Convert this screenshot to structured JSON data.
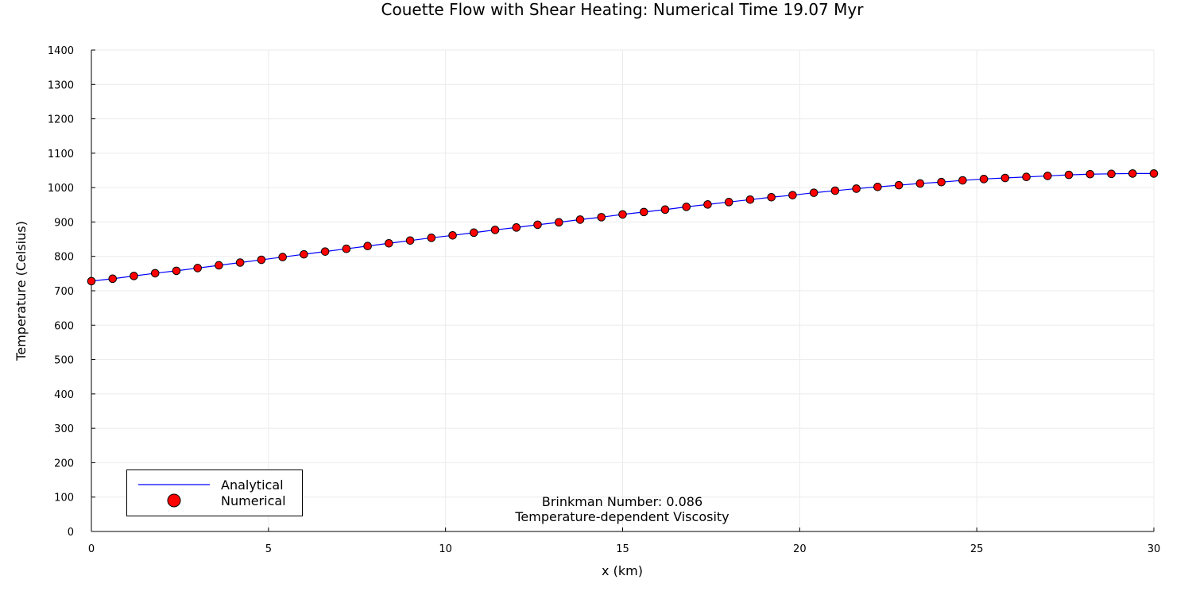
{
  "chart_data": {
    "type": "line+scatter",
    "title": "Couette Flow with Shear Heating: Numerical Time 19.07 Myr",
    "xlabel": "x (km)",
    "ylabel": "Temperature (Celsius)",
    "xlim": [
      0,
      30
    ],
    "ylim": [
      0,
      1400
    ],
    "xticks": [
      0,
      5,
      10,
      15,
      20,
      25,
      30
    ],
    "yticks": [
      0,
      100,
      200,
      300,
      400,
      500,
      600,
      700,
      800,
      900,
      1000,
      1100,
      1200,
      1300,
      1400
    ],
    "grid": true,
    "legend_position": "bottom-left",
    "annotations": [
      "Brinkman Number: 0.086",
      "Temperature-dependent Viscosity"
    ],
    "x": [
      0,
      0.6,
      1.2,
      1.8,
      2.4,
      3.0,
      3.6,
      4.2,
      4.8,
      5.4,
      6.0,
      6.6,
      7.2,
      7.8,
      8.4,
      9.0,
      9.6,
      10.2,
      10.8,
      11.4,
      12.0,
      12.6,
      13.2,
      13.8,
      14.4,
      15.0,
      15.6,
      16.2,
      16.8,
      17.4,
      18.0,
      18.6,
      19.2,
      19.8,
      20.4,
      21.0,
      21.6,
      22.2,
      22.8,
      23.4,
      24.0,
      24.6,
      25.2,
      25.8,
      26.4,
      27.0,
      27.6,
      28.2,
      28.8,
      29.4,
      30.0
    ],
    "series": [
      {
        "name": "Analytical",
        "kind": "line",
        "color": "#0000ff",
        "values": [
          728,
          735,
          743,
          751,
          758,
          766,
          774,
          782,
          790,
          798,
          806,
          814,
          822,
          830,
          838,
          846,
          854,
          861,
          869,
          877,
          884,
          892,
          899,
          907,
          914,
          922,
          929,
          936,
          944,
          951,
          958,
          965,
          972,
          978,
          985,
          991,
          997,
          1002,
          1007,
          1012,
          1016,
          1021,
          1025,
          1028,
          1031,
          1034,
          1037,
          1039,
          1040,
          1041,
          1041
        ]
      },
      {
        "name": "Numerical",
        "kind": "scatter",
        "color": "#ff0000",
        "values": [
          728,
          735,
          743,
          751,
          758,
          766,
          774,
          782,
          790,
          798,
          806,
          814,
          822,
          830,
          838,
          846,
          854,
          861,
          869,
          877,
          884,
          892,
          899,
          907,
          914,
          922,
          929,
          936,
          944,
          951,
          958,
          965,
          972,
          978,
          985,
          991,
          997,
          1002,
          1007,
          1012,
          1016,
          1021,
          1025,
          1028,
          1031,
          1034,
          1037,
          1039,
          1040,
          1041,
          1041
        ]
      }
    ]
  }
}
